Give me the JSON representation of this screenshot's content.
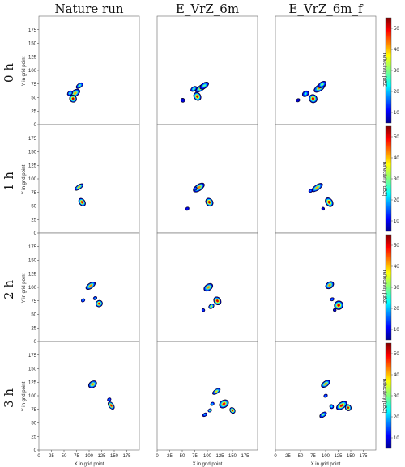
{
  "chart_data": {
    "type": "heatmap",
    "columns": [
      "Nature run",
      "E_VrZ_6m",
      "E_VrZ_6m_f"
    ],
    "rows": [
      "0 h",
      "1 h",
      "2 h",
      "3 h"
    ],
    "xlabel": "X in grid point",
    "ylabel": "Y in grid point",
    "xlim": [
      0,
      200
    ],
    "ylim": [
      0,
      200
    ],
    "ticks": [
      0,
      25,
      50,
      75,
      100,
      125,
      150,
      175
    ],
    "colorbar": {
      "label": "reflectivity [dBZ]",
      "ticks": [
        10,
        20,
        30,
        40,
        50
      ],
      "range": [
        5,
        55
      ],
      "colormap": "jet"
    },
    "panels": [
      [
        {
          "cells": [
            [
              72,
              58,
              11,
              6,
              40
            ],
            [
              62,
              58,
              6,
              4,
              28
            ],
            [
              68,
              48,
              7,
              7,
              52
            ],
            [
              81,
              72,
              8,
              4,
              30
            ]
          ]
        },
        {
          "cells": [
            [
              88,
              68,
              14,
              5,
              42
            ],
            [
              73,
              66,
              7,
              4,
              30
            ],
            [
              80,
              52,
              7,
              8,
              52
            ],
            [
              94,
              72,
              10,
              5,
              28
            ],
            [
              51,
              45,
              4,
              4,
              12
            ]
          ]
        },
        {
          "cells": [
            [
              88,
              68,
              13,
              6,
              42
            ],
            [
              60,
              57,
              7,
              5,
              26
            ],
            [
              75,
              48,
              8,
              8,
              50
            ],
            [
              93,
              74,
              9,
              5,
              30
            ],
            [
              45,
              45,
              4,
              3,
              10
            ]
          ]
        }
      ],
      [
        {
          "cells": [
            [
              80,
              85,
              10,
              4,
              40
            ],
            [
              86,
              57,
              6,
              8,
              50
            ]
          ]
        },
        {
          "cells": [
            [
              83,
              84,
              13,
              6,
              42
            ],
            [
              104,
              57,
              7,
              8,
              52
            ],
            [
              60,
              45,
              4,
              3,
              12
            ],
            [
              76,
              82,
              4,
              3,
              20
            ]
          ]
        },
        {
          "cells": [
            [
              83,
              84,
              13,
              5,
              40
            ],
            [
              107,
              57,
              7,
              9,
              52
            ],
            [
              70,
              78,
              4,
              3,
              18
            ],
            [
              95,
              45,
              3,
              3,
              10
            ]
          ]
        }
      ],
      [
        {
          "cells": [
            [
              103,
              103,
              11,
              5,
              42
            ],
            [
              120,
              70,
              7,
              6,
              50
            ],
            [
              88,
              76,
              4,
              3,
              24
            ],
            [
              112,
              80,
              4,
              3,
              20
            ]
          ]
        },
        {
          "cells": [
            [
              102,
              100,
              10,
              6,
              42
            ],
            [
              120,
              75,
              7,
              8,
              50
            ],
            [
              108,
              65,
              6,
              4,
              38
            ],
            [
              92,
              58,
              3,
              3,
              16
            ]
          ]
        },
        {
          "cells": [
            [
              108,
              104,
              9,
              6,
              42
            ],
            [
              126,
              67,
              9,
              8,
              50
            ],
            [
              113,
              78,
              4,
              3,
              22
            ],
            [
              118,
              58,
              3,
              3,
              12
            ]
          ]
        }
      ],
      [
        {
          "cells": [
            [
              107,
              121,
              9,
              6,
              42
            ],
            [
              144,
              82,
              5,
              8,
              50
            ],
            [
              140,
              93,
              4,
              3,
              20
            ]
          ]
        },
        {
          "cells": [
            [
              118,
              108,
              9,
              4,
              38
            ],
            [
              133,
              85,
              10,
              7,
              48
            ],
            [
              150,
              73,
              5,
              6,
              52
            ],
            [
              110,
              85,
              4,
              3,
              22
            ],
            [
              95,
              65,
              5,
              3,
              20
            ],
            [
              105,
              73,
              4,
              3,
              30
            ]
          ]
        },
        {
          "cells": [
            [
              100,
              122,
              10,
              5,
              42
            ],
            [
              132,
              82,
              12,
              6,
              50
            ],
            [
              145,
              78,
              6,
              6,
              52
            ],
            [
              95,
              65,
              8,
              4,
              30
            ],
            [
              112,
              80,
              4,
              4,
              24
            ],
            [
              100,
              100,
              4,
              3,
              20
            ]
          ]
        }
      ]
    ]
  }
}
